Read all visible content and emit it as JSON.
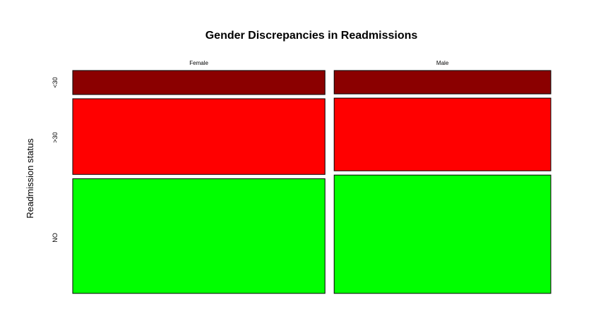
{
  "chart_data": {
    "type": "mosaic",
    "title": "Gender Discrepancies in Readmissions",
    "xlabel": "",
    "ylabel": "Readmission status",
    "columns": [
      "Female",
      "Male"
    ],
    "column_proportions": [
      0.538,
      0.462
    ],
    "rows": [
      "<30",
      ">30",
      "NO"
    ],
    "row_colors": {
      "<30": "#8B0000",
      ">30": "#FF0000",
      "NO": "#00FF00"
    },
    "cells": [
      {
        "column": "Female",
        "row": "<30",
        "proportion": 0.112
      },
      {
        "column": "Female",
        "row": ">30",
        "proportion": 0.353
      },
      {
        "column": "Female",
        "row": "NO",
        "proportion": 0.535
      },
      {
        "column": "Male",
        "row": "<30",
        "proportion": 0.109
      },
      {
        "column": "Male",
        "row": ">30",
        "proportion": 0.339
      },
      {
        "column": "Male",
        "row": "NO",
        "proportion": 0.552
      }
    ]
  }
}
